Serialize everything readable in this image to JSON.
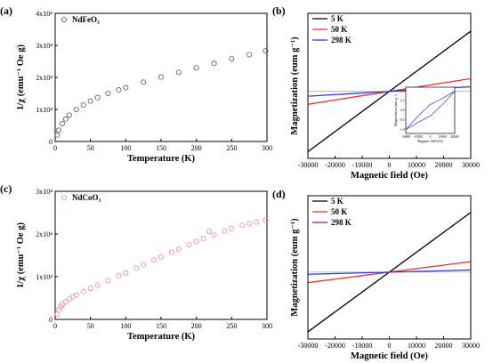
{
  "chart_data": [
    {
      "panel": "(a)",
      "type": "scatter",
      "marker": "open-circle",
      "xlabel": "Temperature (K)",
      "ylabel": "1/χ (emu⁻¹ Oe g)",
      "xlim": [
        0,
        300
      ],
      "ylim": [
        0,
        40000
      ],
      "xticks": [
        "0",
        "50",
        "100",
        "150",
        "200",
        "250",
        "300"
      ],
      "yticks": [
        "0",
        "1x10⁴",
        "2x10⁴",
        "3x10⁴",
        "4x10⁴"
      ],
      "series": [
        {
          "name": "NdFeO₃",
          "color": "#555555",
          "x": [
            3,
            5,
            10,
            15,
            20,
            30,
            40,
            50,
            60,
            75,
            90,
            100,
            125,
            150,
            175,
            200,
            225,
            250,
            275,
            298
          ],
          "y": [
            2000,
            3500,
            5600,
            7000,
            8200,
            10000,
            11400,
            12600,
            13700,
            15000,
            16100,
            16800,
            18500,
            20100,
            21600,
            23000,
            24400,
            25800,
            27100,
            28300
          ]
        }
      ]
    },
    {
      "panel": "(b)",
      "type": "line",
      "xlabel": "Magnetic field (Oe)",
      "ylabel": "Magnetization (eum g⁻¹)",
      "xlim": [
        -30000,
        30000
      ],
      "ylim": [
        -12,
        14
      ],
      "xticks": [
        "-30000",
        "-20000",
        "-10000",
        "0",
        "10000",
        "20000",
        "30000"
      ],
      "legend": "top-left",
      "series": [
        {
          "name": "5 K",
          "color": "#000000",
          "x": [
            -30000,
            30000
          ],
          "y": [
            -10.8,
            10.8
          ]
        },
        {
          "name": "50 K",
          "color": "#e8322b",
          "x": [
            -30000,
            30000
          ],
          "y": [
            -2.3,
            2.3
          ]
        },
        {
          "name": "298 K",
          "color": "#2b3fd6",
          "x": [
            -30000,
            30000
          ],
          "y": [
            -0.85,
            0.85
          ]
        }
      ],
      "inset": {
        "xlabel": "Magnetic field (Oe)",
        "ylabel": "Magnetization (emu g⁻¹)",
        "xlim": [
          -30000,
          30000
        ],
        "ylim": [
          -1.2,
          1.2
        ],
        "xticks": [
          "-30000",
          "-15000",
          "0",
          "15000",
          "30000"
        ],
        "yticks": [
          "-1.0",
          "-0.5",
          "0.0",
          "0.5",
          "1.0"
        ],
        "loop_upper": {
          "x": [
            30000,
            15000,
            0,
            -15000,
            -30000
          ],
          "y": [
            1.0,
            0.62,
            0.3,
            -0.3,
            -1.0
          ]
        },
        "loop_lower": {
          "x": [
            -30000,
            -15000,
            0,
            15000,
            30000
          ],
          "y": [
            -1.0,
            -0.62,
            -0.3,
            0.3,
            1.0
          ]
        }
      }
    },
    {
      "panel": "(c)",
      "type": "scatter",
      "marker": "open-circle",
      "xlabel": "Temperature (K)",
      "ylabel": "1/χ (emu⁻¹ Oe g)",
      "xlim": [
        0,
        300
      ],
      "ylim": [
        0,
        30000
      ],
      "xticks": [
        "0",
        "50",
        "100",
        "150",
        "200",
        "250",
        "300"
      ],
      "yticks": [
        "0",
        "1x10⁴",
        "2x10⁴",
        "3x10⁴"
      ],
      "series": [
        {
          "name": "NdCoO₃",
          "color": "#e98a8a",
          "x": [
            3,
            5,
            8,
            10,
            15,
            20,
            25,
            30,
            40,
            50,
            60,
            75,
            90,
            100,
            115,
            125,
            140,
            150,
            165,
            175,
            190,
            200,
            210,
            218,
            225,
            240,
            250,
            265,
            275,
            285,
            298
          ],
          "y": [
            1200,
            2200,
            3000,
            3500,
            4200,
            4800,
            5300,
            5700,
            6500,
            7300,
            8000,
            9100,
            10200,
            10900,
            12000,
            12800,
            13900,
            14600,
            15700,
            16400,
            17500,
            18200,
            18900,
            20600,
            19800,
            20700,
            21300,
            22000,
            22400,
            22800,
            23200
          ]
        }
      ]
    },
    {
      "panel": "(d)",
      "type": "line",
      "xlabel": "Magnetic field (Oe)",
      "ylabel": "Magnetization (eum g⁻¹)",
      "xlim": [
        -30000,
        30000
      ],
      "ylim": [
        -14,
        16
      ],
      "xticks": [
        "-30000",
        "-20000",
        "-10000",
        "0",
        "10000",
        "20000",
        "30000"
      ],
      "legend": "top-left",
      "series": [
        {
          "name": "5 K",
          "color": "#000000",
          "x": [
            -30000,
            30000
          ],
          "y": [
            -12.5,
            12.5
          ]
        },
        {
          "name": "50 K",
          "color": "#e8322b",
          "x": [
            -30000,
            30000
          ],
          "y": [
            -2.2,
            2.2
          ]
        },
        {
          "name": "298 K",
          "color": "#2b3fd6",
          "x": [
            -30000,
            30000
          ],
          "y": [
            -0.45,
            0.45
          ]
        }
      ]
    }
  ]
}
